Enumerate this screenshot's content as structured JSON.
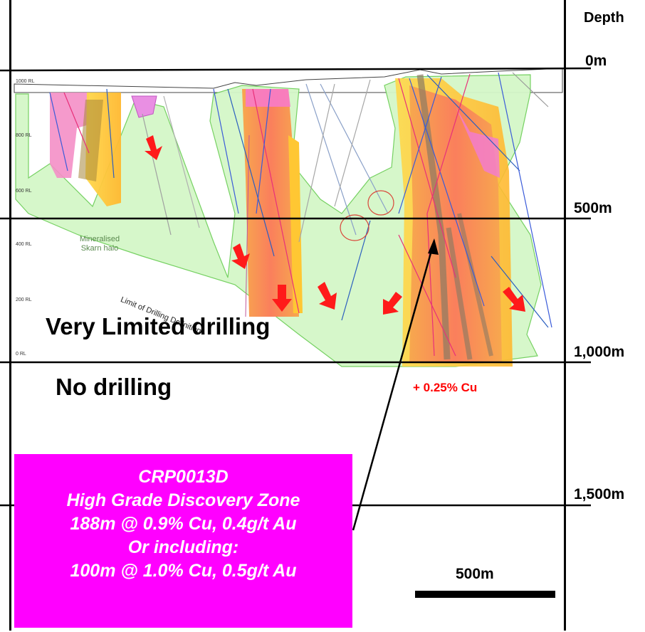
{
  "depth_axis": {
    "title": "Depth",
    "ticks": [
      "0m",
      "500m",
      "1,000m",
      "1,500m"
    ]
  },
  "rl_labels": [
    "1000 RL",
    "800 RL",
    "600 RL",
    "400 RL",
    "200 RL",
    "0 RL"
  ],
  "section_labels": {
    "halo": [
      "Mineralised",
      "Skarn halo"
    ],
    "limit": "Limit of Drilling Definition",
    "very_limited": "Very Limited drilling",
    "no_drilling": "No drilling",
    "cu_grade": "+ 0.25% Cu"
  },
  "callout": {
    "lines": [
      "CRP0013D",
      "High Grade Discovery Zone",
      "188m @ 0.9% Cu, 0.4g/t Au",
      "Or including:",
      "100m @ 1.0% Cu, 0.5g/t Au"
    ],
    "background": "#ff00ff"
  },
  "scale_bar": {
    "label": "500m"
  },
  "colors": {
    "halo": "#ccf5c2",
    "zone_orange": "#f9a36a",
    "zone_yellow": "#ffcc33",
    "zone_pink": "#f28ccf",
    "arrow": "#ff1a1a"
  }
}
